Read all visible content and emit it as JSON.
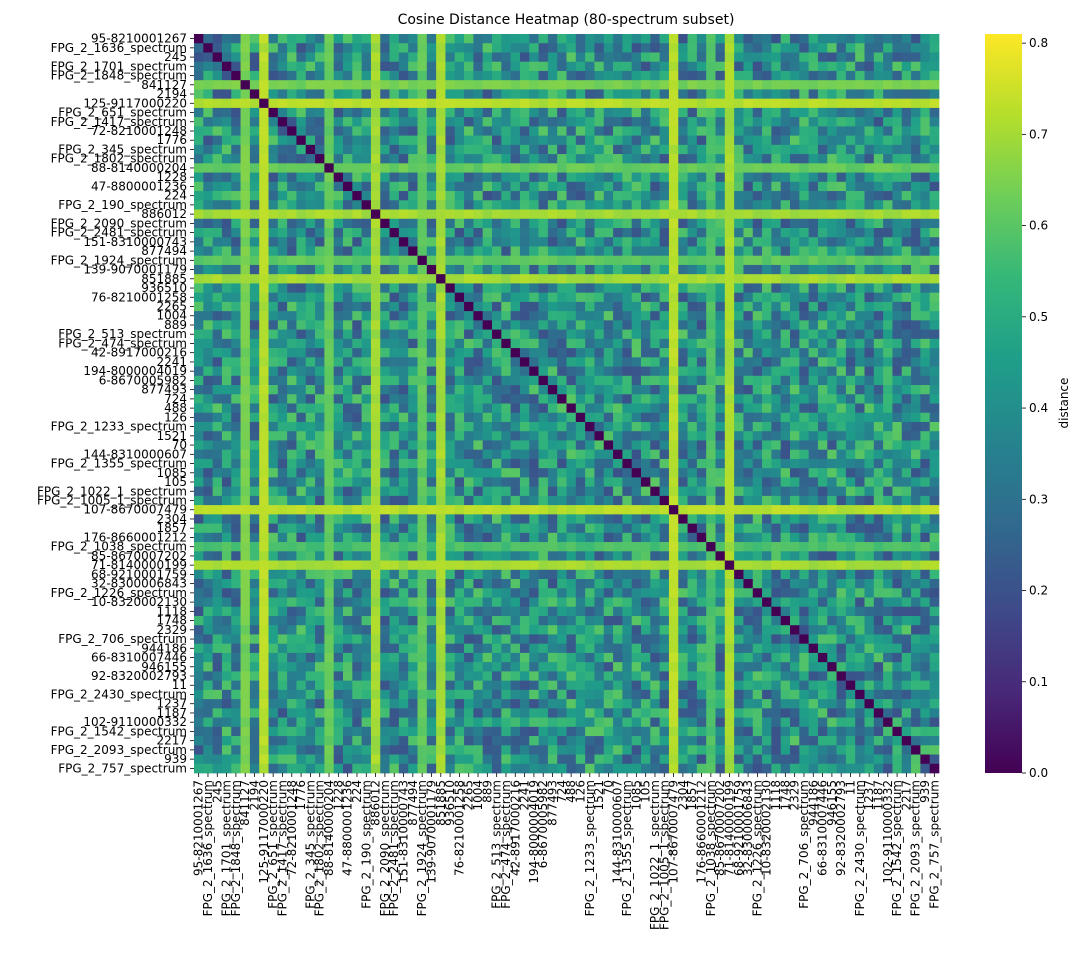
{
  "chart_data": {
    "type": "heatmap",
    "title": "Cosine Distance Heatmap (80-spectrum subset)",
    "xlabel": "",
    "ylabel": "",
    "labels": [
      "95-8210001267",
      "FPG_2_1636_spectrum",
      "245",
      "FPG_2_1701_spectrum",
      "FPG_2_1848_spectrum",
      "841127",
      "2194",
      "125-9117000220",
      "FPG_2_651_spectrum",
      "FPG_2_1417_spectrum",
      "72-8210001248",
      "1776",
      "FPG_2_345_spectrum",
      "FPG_2_1802_spectrum",
      "88-8140000204",
      "1228",
      "47-8800001236",
      "224",
      "FPG_2_190_spectrum",
      "886012",
      "FPG_2_2090_spectrum",
      "FPG_2_2481_spectrum",
      "151-8310000743",
      "877494",
      "FPG_2_1924_spectrum",
      "139-9070001179",
      "851885",
      "936510",
      "76-8210001258",
      "2265",
      "1004",
      "889",
      "FPG_2_513_spectrum",
      "FPG_2_474_spectrum",
      "42-8917000216",
      "2241",
      "194-8000004019",
      "6-8670005982",
      "877493",
      "724",
      "488",
      "126",
      "FPG_2_1233_spectrum",
      "1521",
      "70",
      "144-8310000607",
      "FPG_2_1355_spectrum",
      "1085",
      "105",
      "FPG_2_1022_1_spectrum",
      "FPG_2_1005_1_spectrum",
      "107-8670007479",
      "2304",
      "1857",
      "176-8660001212",
      "FPG_2_1038_spectrum",
      "85-8670007202",
      "71-8140000199",
      "68-9210001759",
      "32-8300006843",
      "FPG_2_1226_spectrum",
      "10-8320002130",
      "1118",
      "1748",
      "2329",
      "FPG_2_706_spectrum",
      "944186",
      "66-8310007446",
      "946155",
      "92-8320002793",
      "11",
      "FPG_2_2430_spectrum",
      "1237",
      "1187",
      "102-9110000332",
      "FPG_2_1542_spectrum",
      "2217",
      "FPG_2_2093_spectrum",
      "939",
      "FPG_2_757_spectrum"
    ],
    "visible_y_tick_indices": [
      0,
      1,
      2,
      3,
      4,
      5,
      6,
      7,
      8,
      9,
      10,
      11,
      12,
      13,
      14,
      15,
      16,
      17,
      18,
      19,
      20,
      21,
      22,
      23,
      24,
      25,
      26,
      27,
      28,
      29,
      30,
      31,
      32,
      33,
      34,
      35,
      36,
      37,
      38,
      39,
      40,
      41,
      42,
      43,
      44,
      45,
      46,
      47,
      48,
      49,
      50,
      51,
      52,
      53,
      54,
      55,
      56,
      57,
      58,
      59,
      60,
      61,
      62,
      63,
      64,
      65,
      66,
      67,
      68,
      69,
      70,
      71,
      72,
      73,
      74,
      75,
      76,
      77,
      78,
      79
    ],
    "colormap": "viridis",
    "colorbar": {
      "label": "distance",
      "range": [
        0.0,
        0.81
      ],
      "ticks": [
        "0.0",
        "0.1",
        "0.2",
        "0.3",
        "0.4",
        "0.5",
        "0.6",
        "0.7",
        "0.8"
      ]
    },
    "diagonal_value": 0.0,
    "background_distance_range": [
      0.2,
      0.6
    ],
    "high_distance_rows": [
      {
        "label": "841127",
        "value": 0.66
      },
      {
        "label": "125-9117000220",
        "value": 0.74
      },
      {
        "label": "88-8140000204",
        "value": 0.64
      },
      {
        "label": "886012",
        "value": 0.72
      },
      {
        "label": "FPG_2_1924_spectrum",
        "value": 0.63
      },
      {
        "label": "851885",
        "value": 0.7
      },
      {
        "label": "107-8670007479",
        "value": 0.74
      },
      {
        "label": "71-8140000199",
        "value": 0.72
      },
      {
        "label": "FPG_2_1038_spectrum",
        "value": 0.6
      }
    ],
    "high_distance_cols": [
      {
        "label": "841127",
        "value": 0.66
      },
      {
        "label": "125-9117000220",
        "value": 0.74
      },
      {
        "label": "88-8140000204",
        "value": 0.62
      },
      {
        "label": "886012",
        "value": 0.7
      },
      {
        "label": "851885",
        "value": 0.72
      },
      {
        "label": "107-8670007479",
        "value": 0.74
      },
      {
        "label": "71-8140000199",
        "value": 0.72
      }
    ]
  },
  "colors": {
    "viridis": [
      "#440154",
      "#482878",
      "#3e4a89",
      "#31688e",
      "#26828e",
      "#1f9e89",
      "#35b779",
      "#6ece58",
      "#b5de2b",
      "#fde725"
    ]
  }
}
